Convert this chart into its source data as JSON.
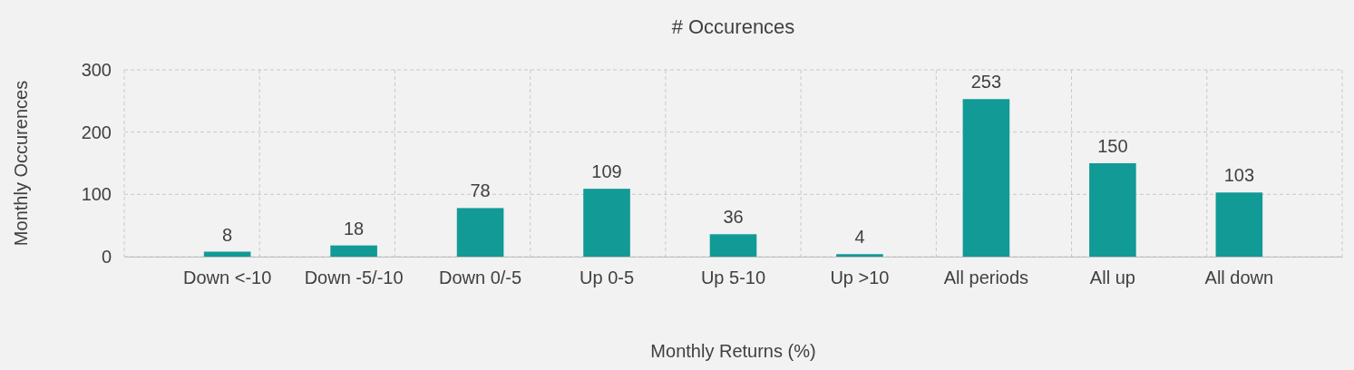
{
  "chart_data": {
    "type": "bar",
    "title": "# Occurences",
    "xlabel": "Monthly Returns (%)",
    "ylabel": "Monthly Occurences",
    "categories": [
      "Down <-10",
      "Down -5/-10",
      "Down 0/-5",
      "Up 0-5",
      "Up 5-10",
      "Up >10",
      "All periods",
      "All up",
      "All down"
    ],
    "values": [
      8,
      18,
      78,
      109,
      36,
      4,
      253,
      150,
      103
    ],
    "color": "#129a96",
    "ylim": [
      0,
      300
    ],
    "yticks": [
      0,
      100,
      200,
      300
    ],
    "grid": true,
    "data_labels": true
  }
}
